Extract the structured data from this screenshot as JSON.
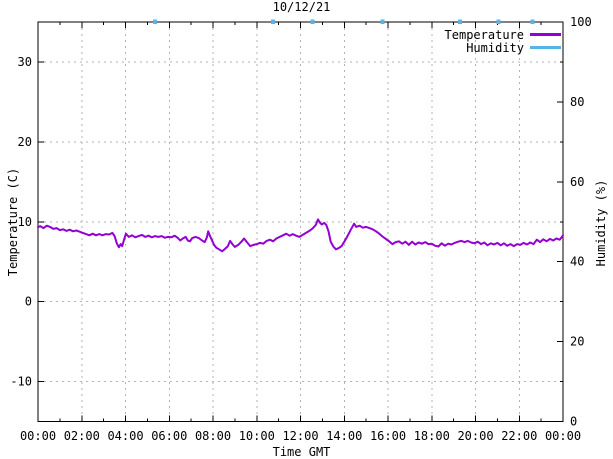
{
  "title": "10/12/21",
  "axes": {
    "xlabel": "Time GMT",
    "ylabel": "Temperature (C)",
    "y2label": "Humidity (%)",
    "x_tick_labels": [
      "00:00",
      "02:00",
      "04:00",
      "06:00",
      "08:00",
      "10:00",
      "12:00",
      "14:00",
      "16:00",
      "18:00",
      "20:00",
      "22:00",
      "00:00"
    ],
    "y1_ticks": [
      30,
      20,
      10,
      0,
      -10
    ],
    "y2_ticks": [
      100,
      80,
      60,
      40,
      20,
      0
    ],
    "y2_minor_ticks": [
      90,
      70,
      50,
      30,
      10
    ]
  },
  "legend": {
    "items": [
      {
        "label": "Temperature",
        "color": "#9400d3"
      },
      {
        "label": "Humidity",
        "color": "#56b4e9"
      }
    ]
  },
  "colors": {
    "temperature": "#9400d3",
    "humidity": "#56b4e9",
    "grid": "#b3b3b3",
    "border": "#000000",
    "background": "#ffffff",
    "text": "#000000"
  },
  "chart_data": {
    "type": "line",
    "title": "10/12/21",
    "xlabel": "Time GMT",
    "ylabel": "Temperature (C)",
    "y2label": "Humidity (%)",
    "x_axis": {
      "unit": "hours GMT",
      "range": [
        0,
        24
      ],
      "tick_interval_hours": 2,
      "minor_tick_hours": 1
    },
    "y1_axis": {
      "label": "Temperature (C)",
      "range": [
        -15,
        35
      ],
      "ticks": [
        30,
        20,
        10,
        0,
        -10
      ]
    },
    "y2_axis": {
      "label": "Humidity (%)",
      "range": [
        0,
        100
      ],
      "ticks": [
        100,
        80,
        60,
        40,
        20,
        0
      ]
    },
    "grid": true,
    "legend_position": "top-right inside",
    "series": [
      {
        "name": "Temperature",
        "axis": "y1",
        "color": "#9400d3",
        "points": [
          [
            0,
            9.3
          ],
          [
            0.1,
            9.45
          ],
          [
            0.25,
            9.2
          ],
          [
            0.4,
            9.5
          ],
          [
            0.55,
            9.35
          ],
          [
            0.7,
            9.1
          ],
          [
            0.85,
            9.2
          ],
          [
            1,
            8.95
          ],
          [
            1.15,
            9.05
          ],
          [
            1.3,
            8.85
          ],
          [
            1.45,
            9
          ],
          [
            1.6,
            8.8
          ],
          [
            1.75,
            8.9
          ],
          [
            1.9,
            8.75
          ],
          [
            2.05,
            8.6
          ],
          [
            2.2,
            8.45
          ],
          [
            2.35,
            8.3
          ],
          [
            2.5,
            8.5
          ],
          [
            2.65,
            8.3
          ],
          [
            2.8,
            8.45
          ],
          [
            2.95,
            8.3
          ],
          [
            3.1,
            8.45
          ],
          [
            3.25,
            8.4
          ],
          [
            3.4,
            8.6
          ],
          [
            3.5,
            8.2
          ],
          [
            3.6,
            7.3
          ],
          [
            3.7,
            6.8
          ],
          [
            3.78,
            7.2
          ],
          [
            3.85,
            6.95
          ],
          [
            3.95,
            7.9
          ],
          [
            4.02,
            8.5
          ],
          [
            4.15,
            8.1
          ],
          [
            4.3,
            8.3
          ],
          [
            4.45,
            8.05
          ],
          [
            4.6,
            8.2
          ],
          [
            4.75,
            8.35
          ],
          [
            4.9,
            8.1
          ],
          [
            5.05,
            8.25
          ],
          [
            5.2,
            8.05
          ],
          [
            5.35,
            8.2
          ],
          [
            5.5,
            8.1
          ],
          [
            5.65,
            8.2
          ],
          [
            5.8,
            8
          ],
          [
            5.95,
            8.1
          ],
          [
            6.1,
            8.05
          ],
          [
            6.25,
            8.25
          ],
          [
            6.4,
            7.95
          ],
          [
            6.5,
            7.65
          ],
          [
            6.62,
            7.9
          ],
          [
            6.75,
            8.1
          ],
          [
            6.85,
            7.65
          ],
          [
            6.95,
            7.55
          ],
          [
            7.05,
            7.95
          ],
          [
            7.2,
            8.1
          ],
          [
            7.35,
            7.95
          ],
          [
            7.5,
            7.65
          ],
          [
            7.62,
            7.45
          ],
          [
            7.72,
            8.05
          ],
          [
            7.78,
            8.8
          ],
          [
            7.85,
            8.3
          ],
          [
            7.95,
            7.7
          ],
          [
            8.05,
            7.1
          ],
          [
            8.15,
            6.75
          ],
          [
            8.3,
            6.5
          ],
          [
            8.42,
            6.3
          ],
          [
            8.55,
            6.6
          ],
          [
            8.68,
            6.95
          ],
          [
            8.78,
            7.6
          ],
          [
            8.9,
            7.15
          ],
          [
            9,
            6.85
          ],
          [
            9.15,
            7.1
          ],
          [
            9.3,
            7.5
          ],
          [
            9.42,
            7.9
          ],
          [
            9.55,
            7.45
          ],
          [
            9.7,
            6.95
          ],
          [
            9.85,
            7.1
          ],
          [
            10,
            7.2
          ],
          [
            10.15,
            7.35
          ],
          [
            10.3,
            7.25
          ],
          [
            10.45,
            7.6
          ],
          [
            10.6,
            7.75
          ],
          [
            10.75,
            7.55
          ],
          [
            10.9,
            7.9
          ],
          [
            11.05,
            8.1
          ],
          [
            11.2,
            8.3
          ],
          [
            11.35,
            8.5
          ],
          [
            11.5,
            8.25
          ],
          [
            11.65,
            8.45
          ],
          [
            11.8,
            8.25
          ],
          [
            11.95,
            8.1
          ],
          [
            12.1,
            8.35
          ],
          [
            12.25,
            8.6
          ],
          [
            12.4,
            8.85
          ],
          [
            12.55,
            9.15
          ],
          [
            12.7,
            9.6
          ],
          [
            12.8,
            10.3
          ],
          [
            12.88,
            9.9
          ],
          [
            12.98,
            9.65
          ],
          [
            13.08,
            9.85
          ],
          [
            13.18,
            9.6
          ],
          [
            13.28,
            8.8
          ],
          [
            13.38,
            7.5
          ],
          [
            13.5,
            6.9
          ],
          [
            13.62,
            6.55
          ],
          [
            13.75,
            6.7
          ],
          [
            13.88,
            6.95
          ],
          [
            14,
            7.5
          ],
          [
            14.15,
            8.2
          ],
          [
            14.3,
            9
          ],
          [
            14.45,
            9.75
          ],
          [
            14.55,
            9.35
          ],
          [
            14.7,
            9.5
          ],
          [
            14.85,
            9.25
          ],
          [
            15,
            9.35
          ],
          [
            15.15,
            9.2
          ],
          [
            15.3,
            9.05
          ],
          [
            15.45,
            8.8
          ],
          [
            15.6,
            8.5
          ],
          [
            15.75,
            8.15
          ],
          [
            15.9,
            7.85
          ],
          [
            16.05,
            7.55
          ],
          [
            16.2,
            7.2
          ],
          [
            16.35,
            7.45
          ],
          [
            16.5,
            7.55
          ],
          [
            16.65,
            7.25
          ],
          [
            16.8,
            7.5
          ],
          [
            16.95,
            7.1
          ],
          [
            17.1,
            7.5
          ],
          [
            17.25,
            7.15
          ],
          [
            17.4,
            7.4
          ],
          [
            17.55,
            7.25
          ],
          [
            17.7,
            7.45
          ],
          [
            17.85,
            7.2
          ],
          [
            18,
            7.25
          ],
          [
            18.15,
            7
          ],
          [
            18.3,
            6.9
          ],
          [
            18.45,
            7.3
          ],
          [
            18.6,
            7
          ],
          [
            18.75,
            7.25
          ],
          [
            18.9,
            7.15
          ],
          [
            19.05,
            7.35
          ],
          [
            19.2,
            7.5
          ],
          [
            19.35,
            7.6
          ],
          [
            19.5,
            7.45
          ],
          [
            19.65,
            7.6
          ],
          [
            19.8,
            7.4
          ],
          [
            19.95,
            7.3
          ],
          [
            20.1,
            7.5
          ],
          [
            20.25,
            7.2
          ],
          [
            20.4,
            7.4
          ],
          [
            20.55,
            7.05
          ],
          [
            20.7,
            7.3
          ],
          [
            20.85,
            7.15
          ],
          [
            21,
            7.35
          ],
          [
            21.15,
            7.05
          ],
          [
            21.3,
            7.3
          ],
          [
            21.45,
            7
          ],
          [
            21.6,
            7.2
          ],
          [
            21.75,
            6.95
          ],
          [
            21.9,
            7.2
          ],
          [
            22.05,
            7.1
          ],
          [
            22.2,
            7.35
          ],
          [
            22.35,
            7.15
          ],
          [
            22.5,
            7.4
          ],
          [
            22.65,
            7.2
          ],
          [
            22.8,
            7.75
          ],
          [
            22.95,
            7.45
          ],
          [
            23.1,
            7.8
          ],
          [
            23.25,
            7.55
          ],
          [
            23.4,
            7.85
          ],
          [
            23.55,
            7.65
          ],
          [
            23.7,
            7.9
          ],
          [
            23.85,
            7.75
          ],
          [
            23.95,
            8.1
          ],
          [
            24,
            8.3
          ]
        ]
      },
      {
        "name": "Humidity",
        "axis": "y2",
        "color": "#56b4e9",
        "value_note": "approximately 100% all day; line pinned at top border, visible only as short dashes touching the top edge",
        "top_touch_hours": [
          5.35,
          10.75,
          12.55,
          15.75,
          19.3,
          21.05,
          22.6
        ]
      }
    ]
  }
}
